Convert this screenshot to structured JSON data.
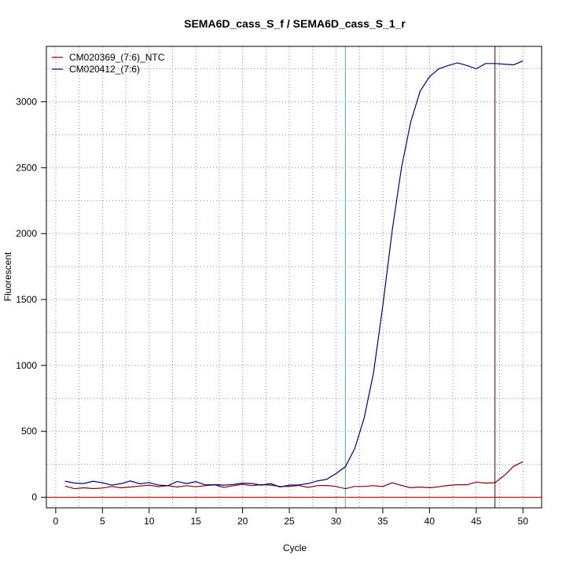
{
  "chart_data": {
    "type": "line",
    "title": "SEMA6D_cass_S_f / SEMA6D_cass_S_1_r",
    "xlabel": "Cycle",
    "ylabel": "Fluorescent",
    "xlim": [
      -1,
      52
    ],
    "ylim": [
      -80,
      3420
    ],
    "xticks": [
      0,
      5,
      10,
      15,
      20,
      25,
      30,
      35,
      40,
      45,
      50
    ],
    "yticks": [
      0,
      500,
      1000,
      1500,
      2000,
      2500,
      3000
    ],
    "grid": true,
    "legend_position": "top-left",
    "threshold_line": {
      "y": 0,
      "color": "#cc0000"
    },
    "vertical_lines": [
      {
        "x": 31,
        "color": "#00e5ee"
      },
      {
        "x": 47,
        "color": "#8b2500"
      }
    ],
    "series": [
      {
        "name": "CM020369_(7:6)_NTC",
        "color": "#8b0000",
        "x": [
          1,
          2,
          3,
          4,
          5,
          6,
          7,
          8,
          9,
          10,
          11,
          12,
          13,
          14,
          15,
          16,
          17,
          18,
          19,
          20,
          21,
          22,
          23,
          24,
          25,
          26,
          27,
          28,
          29,
          30,
          31,
          32,
          33,
          34,
          35,
          36,
          37,
          38,
          39,
          40,
          41,
          42,
          43,
          44,
          45,
          46,
          47,
          48,
          49,
          50
        ],
        "y": [
          85,
          65,
          72,
          66,
          70,
          82,
          72,
          78,
          85,
          92,
          80,
          88,
          78,
          88,
          80,
          88,
          94,
          75,
          88,
          98,
          88,
          96,
          92,
          82,
          82,
          90,
          75,
          88,
          90,
          82,
          65,
          82,
          82,
          88,
          82,
          110,
          90,
          72,
          78,
          72,
          80,
          90,
          95,
          95,
          115,
          108,
          110,
          165,
          235,
          270
        ]
      },
      {
        "name": "CM020412_(7:6)",
        "color": "#00008b",
        "x": [
          1,
          2,
          3,
          4,
          5,
          6,
          7,
          8,
          9,
          10,
          11,
          12,
          13,
          14,
          15,
          16,
          17,
          18,
          19,
          20,
          21,
          22,
          23,
          24,
          25,
          26,
          27,
          28,
          29,
          30,
          31,
          32,
          33,
          34,
          35,
          36,
          37,
          38,
          39,
          40,
          41,
          42,
          43,
          44,
          45,
          46,
          47,
          48,
          49,
          50
        ],
        "y": [
          122,
          108,
          104,
          122,
          110,
          92,
          104,
          124,
          102,
          112,
          92,
          88,
          120,
          104,
          118,
          94,
          96,
          92,
          97,
          108,
          104,
          92,
          104,
          78,
          92,
          94,
          104,
          124,
          136,
          180,
          232,
          370,
          600,
          940,
          1450,
          2020,
          2500,
          2850,
          3080,
          3190,
          3250,
          3275,
          3295,
          3275,
          3250,
          3290,
          3290,
          3285,
          3280,
          3310
        ]
      }
    ]
  }
}
